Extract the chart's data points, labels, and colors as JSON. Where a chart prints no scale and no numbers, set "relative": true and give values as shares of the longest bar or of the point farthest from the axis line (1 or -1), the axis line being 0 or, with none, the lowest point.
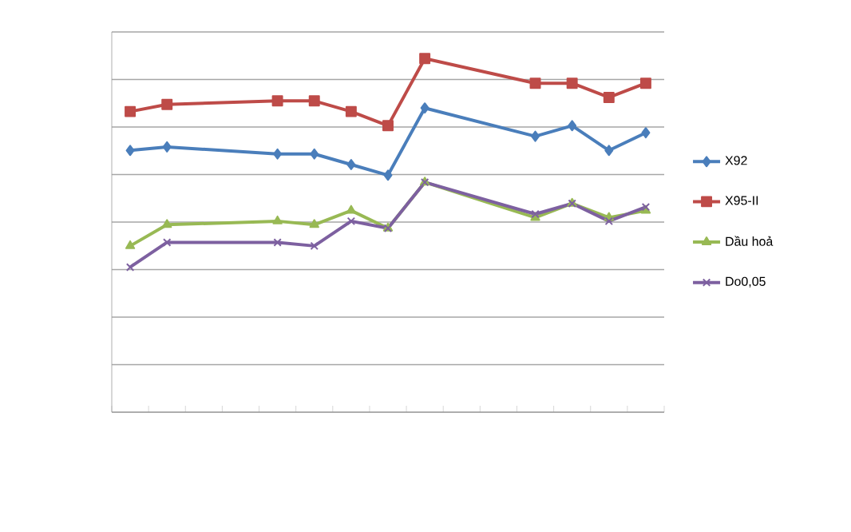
{
  "chart_data": {
    "type": "line",
    "relative": true,
    "grid": "y",
    "legend": "right",
    "tick_labels": false,
    "categories": [
      null,
      null,
      null,
      null,
      null,
      null,
      null,
      null,
      null,
      null,
      null,
      null,
      null,
      null,
      null
    ],
    "series": [
      {
        "name": "X92",
        "color": "#4a7ebb",
        "marker": "diamond",
        "values": [
          0.74,
          0.75,
          null,
          null,
          0.73,
          0.73,
          0.7,
          0.67,
          0.86,
          null,
          null,
          0.78,
          0.81,
          0.74,
          0.79
        ]
      },
      {
        "name": "X95-II",
        "color": "#be4b48",
        "marker": "square",
        "values": [
          0.85,
          0.87,
          null,
          null,
          0.88,
          0.88,
          0.85,
          0.81,
          1,
          null,
          null,
          0.93,
          0.93,
          0.89,
          0.93
        ]
      },
      {
        "name": "Dầu hoả",
        "color": "#98b954",
        "marker": "triangle",
        "values": [
          0.47,
          0.53,
          null,
          null,
          0.54,
          0.53,
          0.57,
          0.52,
          0.65,
          null,
          null,
          0.55,
          0.59,
          0.55,
          0.57
        ]
      },
      {
        "name": "Do0,05",
        "color": "#7d60a0",
        "marker": "cross",
        "values": [
          0.41,
          0.48,
          null,
          null,
          0.48,
          0.47,
          0.54,
          0.52,
          0.65,
          null,
          null,
          0.56,
          0.59,
          0.54,
          0.58
        ]
      }
    ]
  }
}
